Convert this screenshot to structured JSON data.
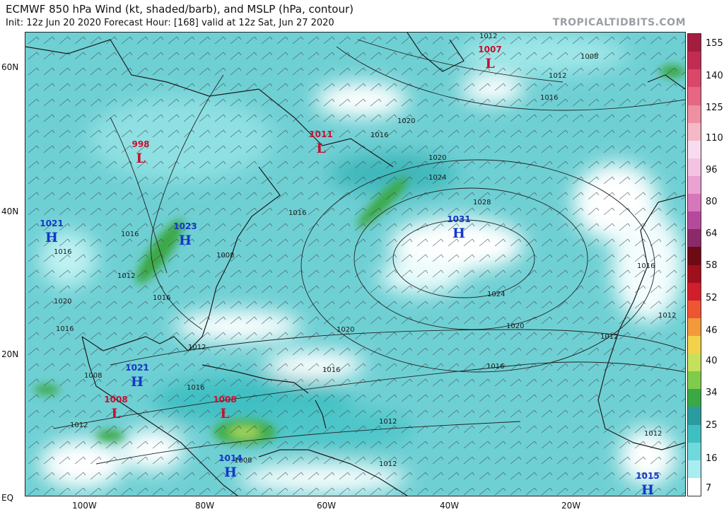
{
  "header": {
    "title": "ECMWF 850 hPa Wind (kt, shaded/barb), and MSLP (hPa, contour)",
    "subtitle": "Init: 12z Jun 20 2020   Forecast Hour: [168]   valid at 12z Sat, Jun 27 2020",
    "brand": "TROPICALTIDBITS.COM"
  },
  "axes": {
    "lat_labels": [
      "60N",
      "40N",
      "20N",
      "EQ"
    ],
    "lon_labels": [
      "100W",
      "80W",
      "60W",
      "40W",
      "20W"
    ]
  },
  "colorbar": {
    "labels": [
      "7",
      "16",
      "25",
      "34",
      "40",
      "46",
      "52",
      "58",
      "64",
      "80",
      "96",
      "110",
      "125",
      "140",
      "155"
    ],
    "colors": [
      "#ffffff",
      "#a8eef0",
      "#6fd9db",
      "#40bfc2",
      "#2a9c9f",
      "#3aa845",
      "#7fcc4c",
      "#c5e05a",
      "#f2d24a",
      "#f29a3b",
      "#ee5533",
      "#d11e2a",
      "#a00f1c",
      "#6e0a14",
      "#8a2a6a",
      "#b54a9a",
      "#d677bb",
      "#eaa2d2",
      "#f3c4e2",
      "#f7dcee",
      "#f5b8c6",
      "#ef8fa3",
      "#e56783",
      "#d94769",
      "#c12d52",
      "#a31d40"
    ]
  },
  "pressure_centers": [
    {
      "type": "L",
      "value": "1007",
      "color": "#c8102e"
    },
    {
      "type": "L",
      "value": "998",
      "color": "#c8102e"
    },
    {
      "type": "L",
      "value": "1011",
      "color": "#c8102e"
    },
    {
      "type": "H",
      "value": "1021",
      "color": "#1537c8"
    },
    {
      "type": "H",
      "value": "1023",
      "color": "#1537c8"
    },
    {
      "type": "H",
      "value": "1031",
      "color": "#1537c8"
    },
    {
      "type": "H",
      "value": "1021",
      "color": "#1537c8"
    },
    {
      "type": "L",
      "value": "1008",
      "color": "#c8102e"
    },
    {
      "type": "L",
      "value": "1008",
      "color": "#c8102e"
    },
    {
      "type": "H",
      "value": "1014",
      "color": "#1537c8"
    },
    {
      "type": "H",
      "value": "1015",
      "color": "#1537c8"
    }
  ],
  "isobar_labels": [
    "1012",
    "1008",
    "1012",
    "1016",
    "1020",
    "1016",
    "1020",
    "1024",
    "1028",
    "1024",
    "1020",
    "1016",
    "1016",
    "1012",
    "1008",
    "1016",
    "1020",
    "1016",
    "1016",
    "1012",
    "1008",
    "1012",
    "1012",
    "1016",
    "1012",
    "1016",
    "1020",
    "1016",
    "1012",
    "1012",
    "1016",
    "1012",
    "1008"
  ]
}
